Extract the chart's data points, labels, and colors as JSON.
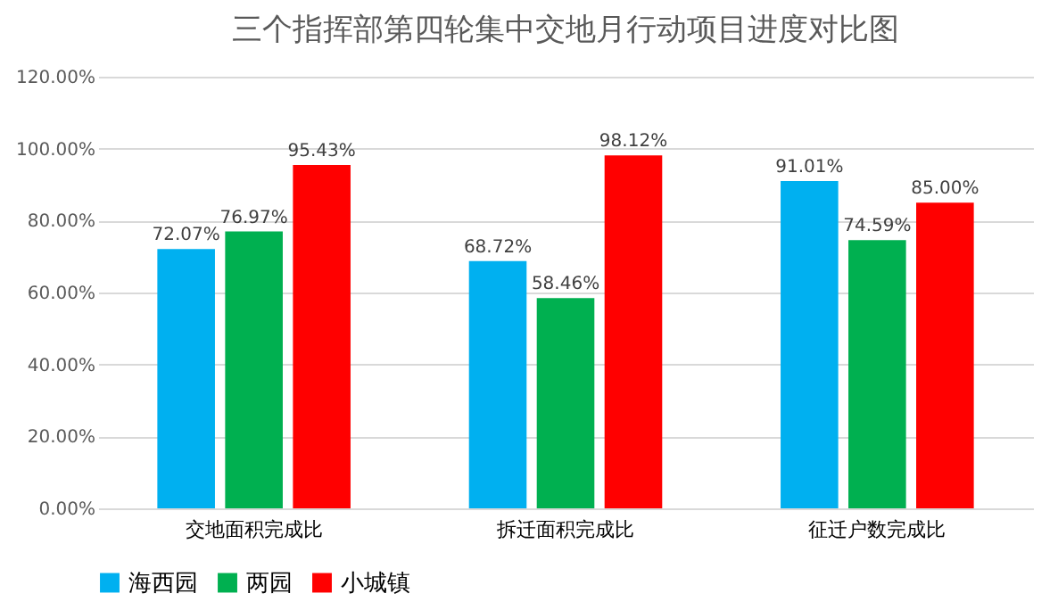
{
  "chart_data": {
    "type": "bar",
    "title": "三个指挥部第四轮集中交地月行动项目进度对比图",
    "categories": [
      "交地面积完成比",
      "拆迁面积完成比",
      "征迁户数完成比"
    ],
    "series": [
      {
        "name": "海西园",
        "color": "#00b0f0",
        "values": [
          72.07,
          68.72,
          91.01
        ],
        "value_labels": [
          "72.07%",
          "68.72%",
          "91.01%"
        ]
      },
      {
        "name": "两园",
        "color": "#00b050",
        "values": [
          76.97,
          58.46,
          74.59
        ],
        "value_labels": [
          "76.97%",
          "58.46%",
          "74.59%"
        ]
      },
      {
        "name": "小城镇",
        "color": "#ff0000",
        "values": [
          95.43,
          98.12,
          85.0
        ],
        "value_labels": [
          "95.43%",
          "98.12%",
          "85.00%"
        ]
      }
    ],
    "ylim": [
      0,
      120
    ],
    "yticks": [
      {
        "value": 0,
        "label": "0.00%"
      },
      {
        "value": 20,
        "label": "20.00%"
      },
      {
        "value": 40,
        "label": "40.00%"
      },
      {
        "value": 60,
        "label": "60.00%"
      },
      {
        "value": 80,
        "label": "80.00%"
      },
      {
        "value": 100,
        "label": "100.00%"
      },
      {
        "value": 120,
        "label": "120.00%"
      }
    ],
    "grid": "y",
    "legend": "bottom"
  }
}
